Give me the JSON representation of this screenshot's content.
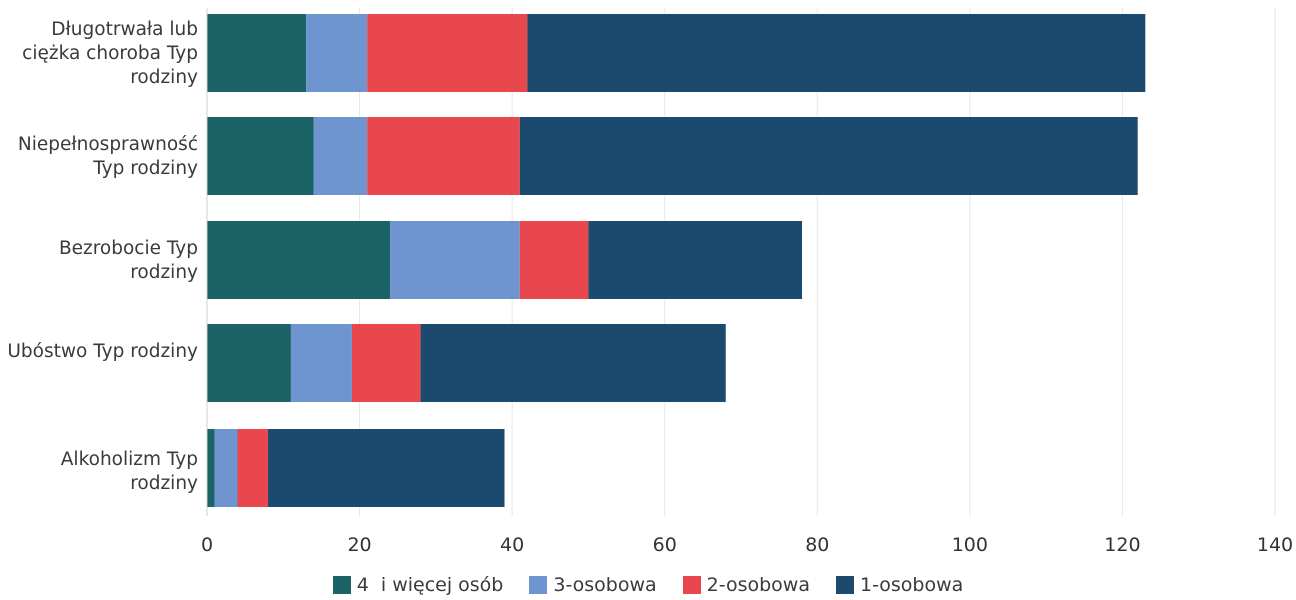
{
  "chart_data": {
    "type": "bar",
    "orientation": "horizontal",
    "stacked": true,
    "categories": [
      "Długotrwała lub ciężka choroba Typ rodziny",
      "Niepełnosprawność Typ rodziny",
      "Bezrobocie Typ rodziny",
      "Ubóstwo Typ rodziny",
      "Alkoholizm Typ rodziny"
    ],
    "series": [
      {
        "name": "4  i więcej osób",
        "color": "#1b6366",
        "values": [
          13,
          14,
          24,
          11,
          1
        ]
      },
      {
        "name": "3-osobowa",
        "color": "#6e95cf",
        "values": [
          8,
          7,
          17,
          8,
          3
        ]
      },
      {
        "name": "2-osobowa",
        "color": "#e8484d",
        "values": [
          21,
          20,
          9,
          9,
          4
        ]
      },
      {
        "name": "1-osobowa",
        "color": "#1b4a6e",
        "values": [
          81,
          81,
          28,
          40,
          31
        ]
      }
    ],
    "xlim": [
      0,
      140
    ],
    "xticks": [
      0,
      20,
      40,
      60,
      80,
      100,
      120,
      140
    ],
    "grid": true,
    "legend_position": "bottom"
  }
}
